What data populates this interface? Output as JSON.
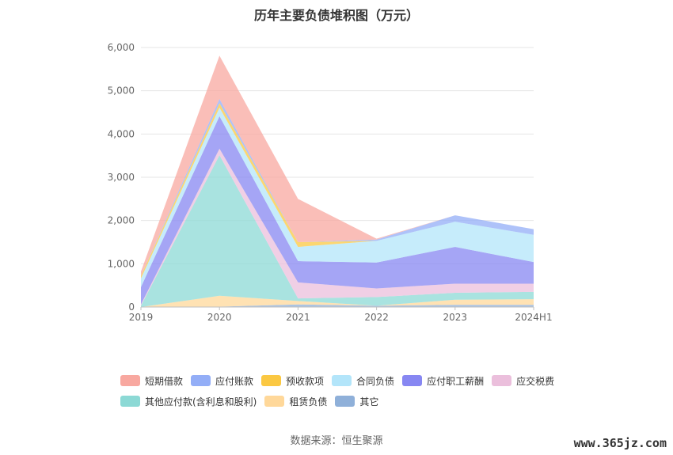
{
  "chart_data": {
    "type": "area",
    "title": "历年主要负债堆积图（万元）",
    "categories": [
      "2019",
      "2020",
      "2021",
      "2022",
      "2023",
      "2024H1"
    ],
    "ylim": [
      0,
      6000
    ],
    "yticks": [
      "0",
      "1,000",
      "2,000",
      "3,000",
      "4,000",
      "5,000",
      "6,000"
    ],
    "ytick_values": [
      0,
      1000,
      2000,
      3000,
      4000,
      5000,
      6000
    ],
    "stacked": true,
    "grid": true,
    "legend_position": "bottom",
    "series": [
      {
        "name": "其它",
        "color": "#8fb0d9",
        "values": [
          0,
          10,
          60,
          30,
          50,
          50
        ]
      },
      {
        "name": "租赁负债",
        "color": "#ffd89a",
        "values": [
          0,
          250,
          80,
          0,
          120,
          130
        ]
      },
      {
        "name": "其他应付款(含利息和股利)",
        "color": "#8cd9d5",
        "values": [
          30,
          3250,
          60,
          200,
          160,
          170
        ]
      },
      {
        "name": "应交税费",
        "color": "#ebbfdc",
        "values": [
          30,
          150,
          370,
          200,
          210,
          190
        ]
      },
      {
        "name": "应付职工薪酬",
        "color": "#8787f2",
        "values": [
          400,
          750,
          490,
          600,
          850,
          500
        ]
      },
      {
        "name": "合同负债",
        "color": "#b3e5fa",
        "values": [
          200,
          200,
          330,
          500,
          580,
          630
        ]
      },
      {
        "name": "预收款项",
        "color": "#fbc842",
        "values": [
          60,
          100,
          110,
          0,
          0,
          0
        ]
      },
      {
        "name": "应付账款",
        "color": "#93aef7",
        "values": [
          0,
          100,
          0,
          30,
          150,
          130
        ]
      },
      {
        "name": "短期借款",
        "color": "#f8a8a0",
        "values": [
          100,
          1000,
          1000,
          20,
          0,
          0
        ]
      }
    ]
  },
  "legend": [
    {
      "label": "短期借款",
      "color": "#f8a8a0"
    },
    {
      "label": "应付账款",
      "color": "#93aef7"
    },
    {
      "label": "预收款项",
      "color": "#fbc842"
    },
    {
      "label": "合同负债",
      "color": "#b3e5fa"
    },
    {
      "label": "应付职工薪酬",
      "color": "#8787f2"
    },
    {
      "label": "应交税费",
      "color": "#ebbfdc"
    },
    {
      "label": "其他应付款(含利息和股利)",
      "color": "#8cd9d5"
    },
    {
      "label": "租赁负债",
      "color": "#ffd89a"
    },
    {
      "label": "其它",
      "color": "#8fb0d9"
    }
  ],
  "source": "数据来源：恒生聚源",
  "watermark": "www.365jz.com"
}
